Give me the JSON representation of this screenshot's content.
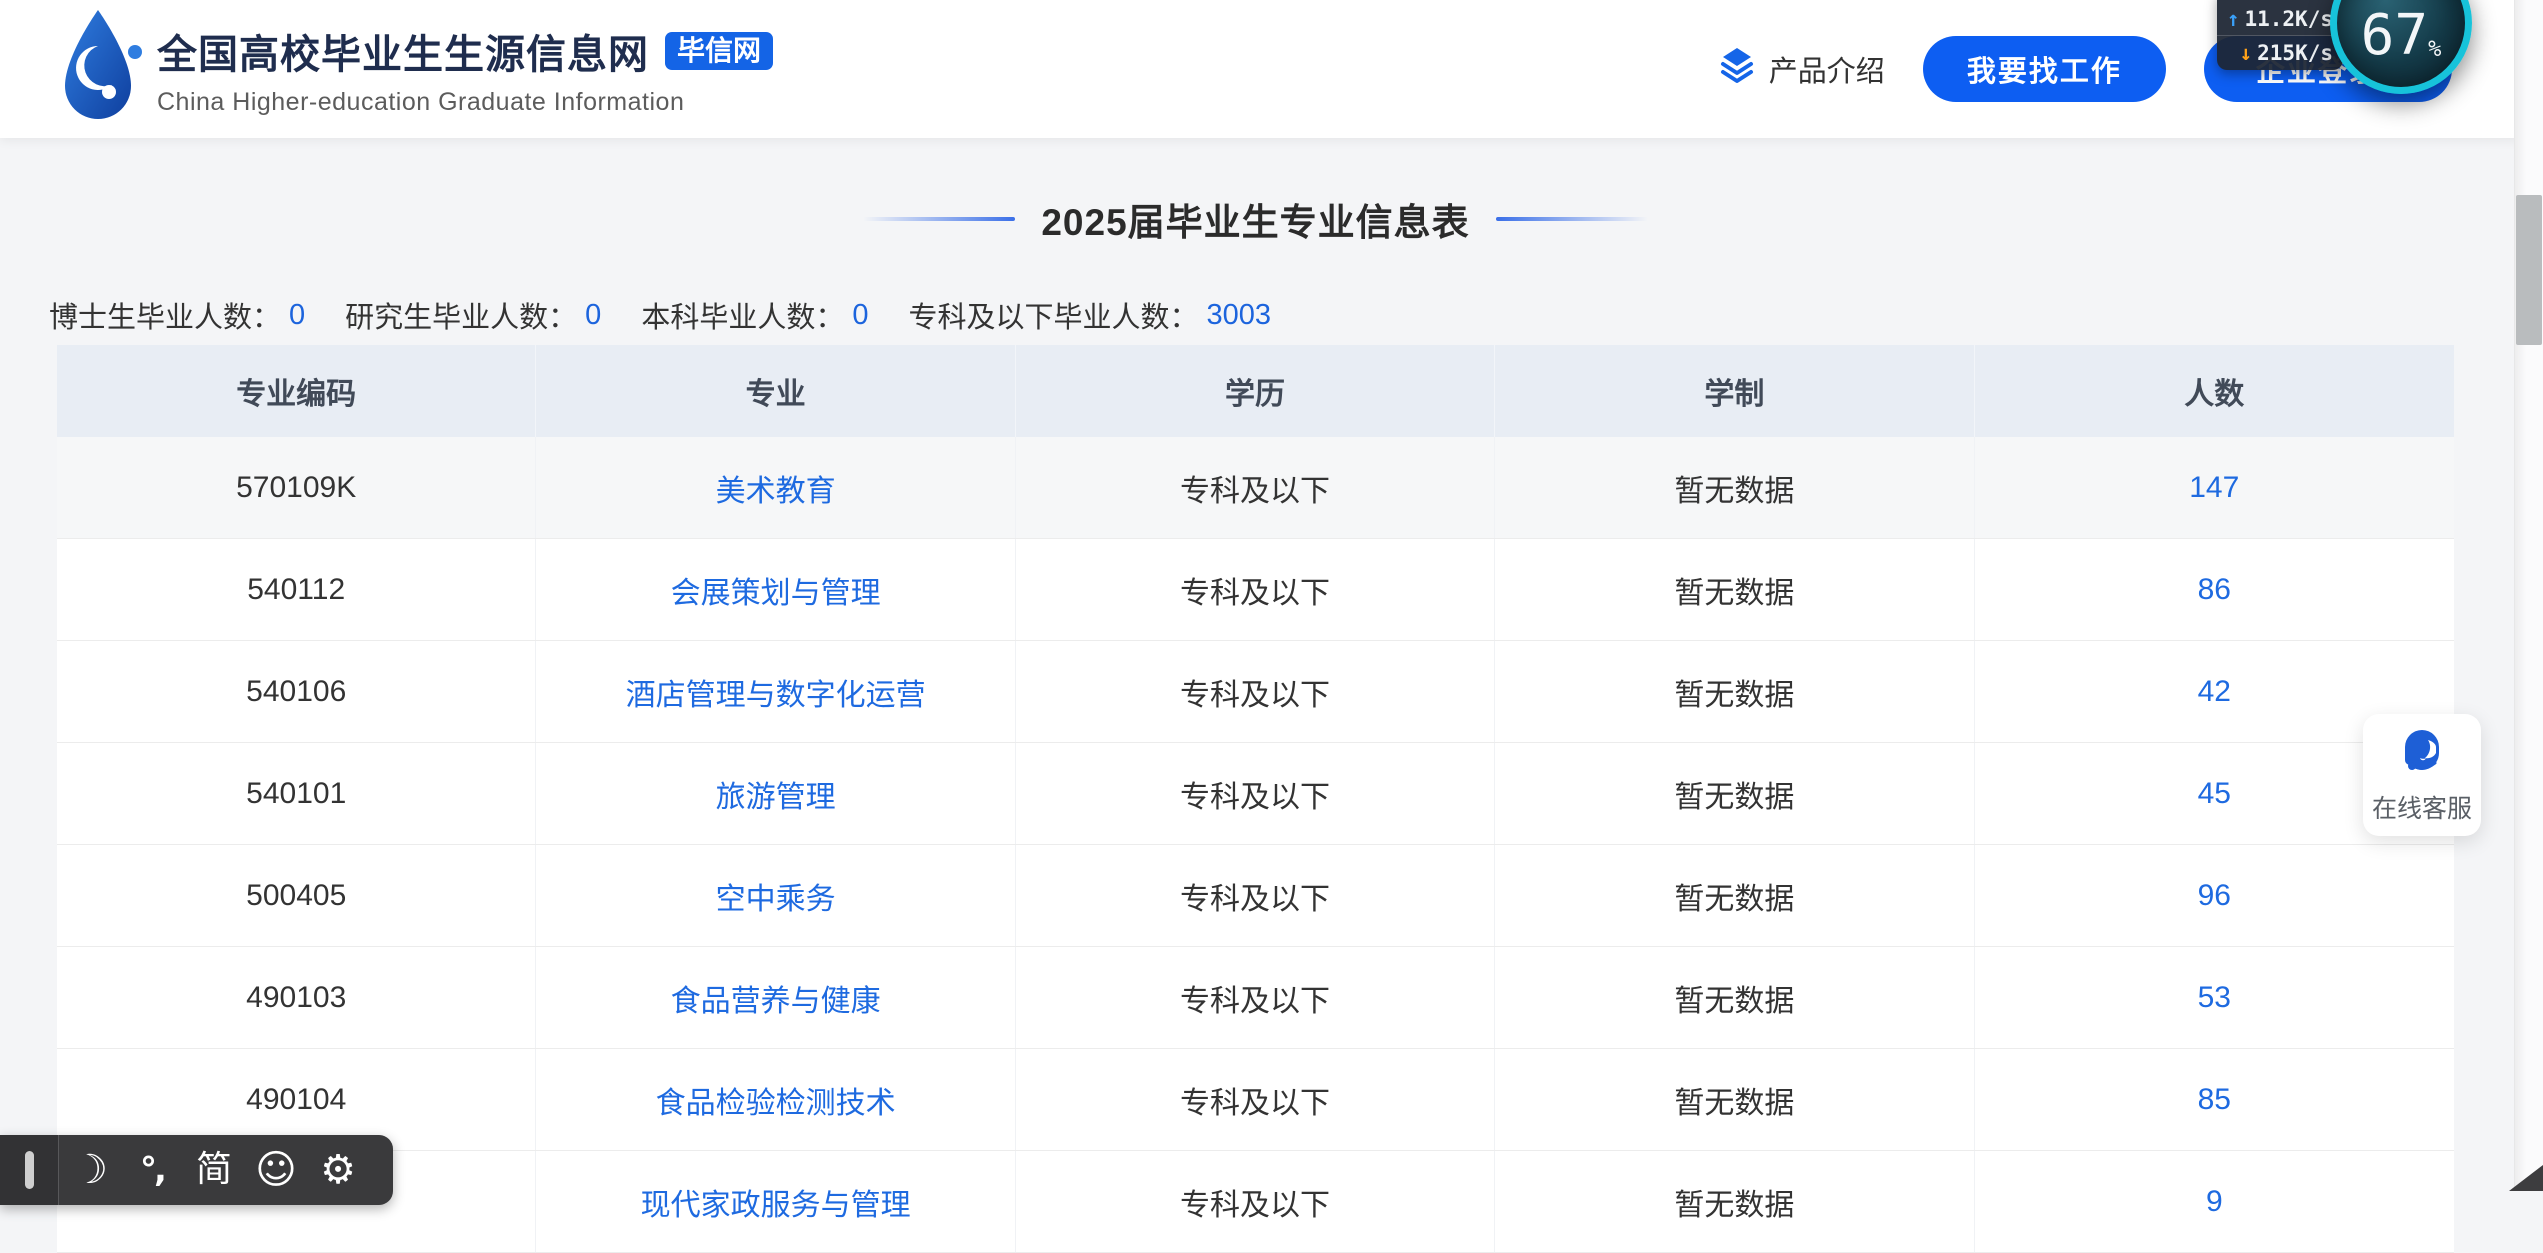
{
  "header": {
    "logo": {
      "title": "全国高校毕业生生源信息网",
      "badge": "毕信网",
      "subtitle": "China Higher-education Graduate Information"
    },
    "nav": {
      "product_intro": "产品介绍",
      "find_job": "我要找工作",
      "enterprise_login": "企业登录 |"
    }
  },
  "overlays": {
    "net_speed": {
      "up": "11.2K/s",
      "down": "215K/s"
    },
    "gauge": {
      "value": "67",
      "unit": "%"
    },
    "customer_service": {
      "label": "在线客服"
    },
    "ime_bar": {
      "simplified": "简",
      "punct": "°,"
    }
  },
  "page": {
    "title": "2025届毕业生专业信息表",
    "stats": [
      {
        "label": "博士生毕业人数：",
        "value": "0"
      },
      {
        "label": "研究生毕业人数：",
        "value": "0"
      },
      {
        "label": "本科毕业人数：",
        "value": "0"
      },
      {
        "label": "专科及以下毕业人数：",
        "value": "3003"
      }
    ],
    "table": {
      "columns": [
        "专业编码",
        "专业",
        "学历",
        "学制",
        "人数"
      ],
      "rows": [
        {
          "code": "570109K",
          "major": "美术教育",
          "degree": "专科及以下",
          "duration": "暂无数据",
          "count": "147",
          "shaded": true
        },
        {
          "code": "540112",
          "major": "会展策划与管理",
          "degree": "专科及以下",
          "duration": "暂无数据",
          "count": "86"
        },
        {
          "code": "540106",
          "major": "酒店管理与数字化运营",
          "degree": "专科及以下",
          "duration": "暂无数据",
          "count": "42"
        },
        {
          "code": "540101",
          "major": "旅游管理",
          "degree": "专科及以下",
          "duration": "暂无数据",
          "count": "45"
        },
        {
          "code": "500405",
          "major": "空中乘务",
          "degree": "专科及以下",
          "duration": "暂无数据",
          "count": "96"
        },
        {
          "code": "490103",
          "major": "食品营养与健康",
          "degree": "专科及以下",
          "duration": "暂无数据",
          "count": "53"
        },
        {
          "code": "490104",
          "major": "食品检验检测技术",
          "degree": "专科及以下",
          "duration": "暂无数据",
          "count": "85"
        },
        {
          "code": "",
          "major": "现代家政服务与管理",
          "degree": "专科及以下",
          "duration": "暂无数据",
          "count": "9"
        }
      ]
    }
  },
  "colors": {
    "accent_blue": "#0d5ef2",
    "link_blue": "#1e6ae0",
    "badge_blue": "#1464e6",
    "table_header_bg": "#e8edf4",
    "page_bg": "#f4f5f7",
    "gauge_ring": "#17c3da",
    "net_up_arrow": "#3aa0f8",
    "net_down_arrow": "#ffa21a"
  }
}
